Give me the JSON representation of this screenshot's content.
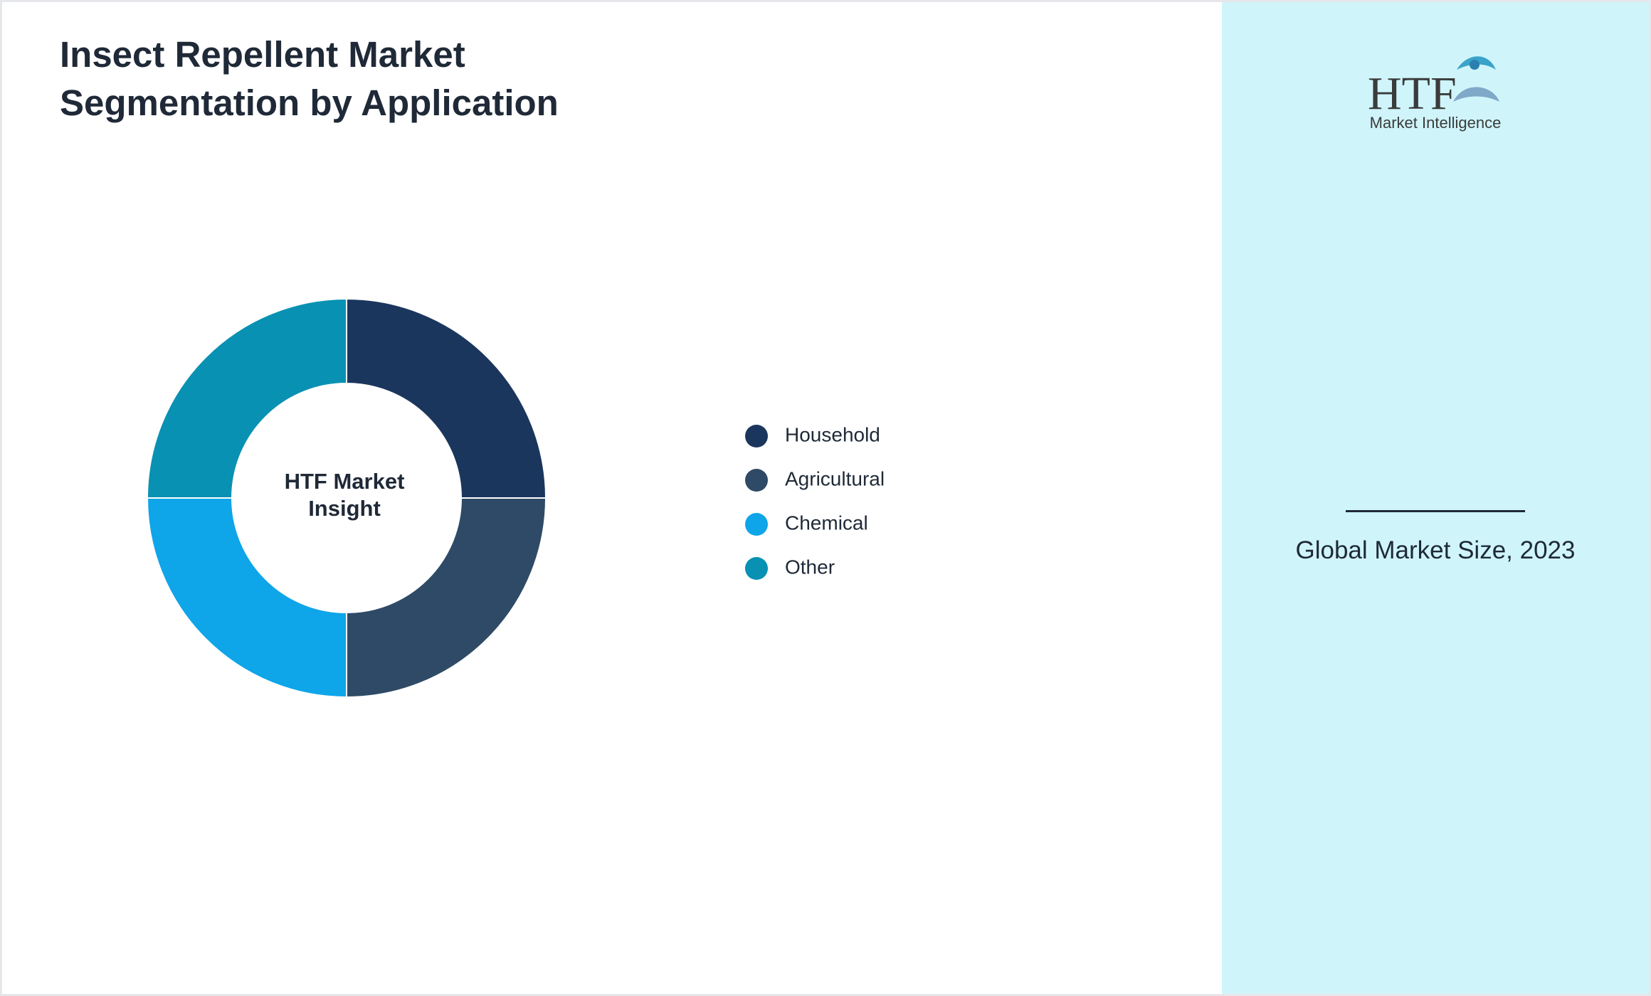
{
  "chart_data": {
    "type": "pie",
    "title": "Insect Repellent Market Segmentation by Application",
    "center_label": "HTF Market Insight",
    "categories": [
      "Household",
      "Agricultural",
      "Chemical",
      "Other"
    ],
    "values": [
      25,
      25,
      25,
      25
    ],
    "colors": [
      "#1b365d",
      "#2e4a66",
      "#0ea5e9",
      "#0891b2"
    ]
  },
  "logo": {
    "mark": "HTF",
    "text": "Market Intelligence"
  },
  "sidebar": {
    "label": "Global Market Size, 2023"
  }
}
